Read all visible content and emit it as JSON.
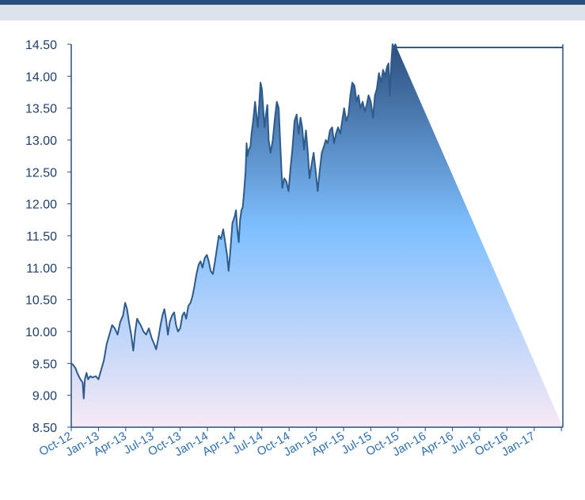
{
  "chart_data": {
    "type": "area",
    "title": "",
    "xlabel": "",
    "ylabel": "",
    "ylim": [
      8.5,
      14.5
    ],
    "y_ticks": [
      "14.50",
      "14.00",
      "13.50",
      "13.00",
      "12.50",
      "12.00",
      "11.50",
      "11.00",
      "10.50",
      "10.00",
      "9.50",
      "9.00",
      "8.50"
    ],
    "x_tick_labels": [
      "Oct-12",
      "Jan-13",
      "Apr-13",
      "Jul-13",
      "Oct-13",
      "Jan-14",
      "Apr-14",
      "Jul-14",
      "Oct-14",
      "Jan-15",
      "Apr-15",
      "Jul-15",
      "Oct-15",
      "Jan-16",
      "Apr-16",
      "Jul-16",
      "Oct-16",
      "Jan-17"
    ],
    "grid": false,
    "colors": {
      "line": "#2e5a8c",
      "fill_top": "#2b4f7e",
      "fill_mid": "#7fbfff",
      "fill_bottom": "#f7e9f5",
      "axis": "#2a4f7d"
    },
    "series": [
      {
        "values": [
          [
            0.0,
            9.5
          ],
          [
            0.08,
            9.47
          ],
          [
            0.15,
            9.43
          ],
          [
            0.22,
            9.35
          ],
          [
            0.3,
            9.28
          ],
          [
            0.37,
            9.23
          ],
          [
            0.42,
            9.2
          ],
          [
            0.46,
            8.95
          ],
          [
            0.5,
            9.25
          ],
          [
            0.56,
            9.35
          ],
          [
            0.62,
            9.25
          ],
          [
            0.7,
            9.3
          ],
          [
            0.78,
            9.28
          ],
          [
            0.9,
            9.3
          ],
          [
            1.0,
            9.25
          ],
          [
            1.1,
            9.4
          ],
          [
            1.2,
            9.55
          ],
          [
            1.3,
            9.8
          ],
          [
            1.4,
            9.95
          ],
          [
            1.5,
            10.1
          ],
          [
            1.6,
            10.05
          ],
          [
            1.7,
            9.95
          ],
          [
            1.8,
            10.15
          ],
          [
            1.9,
            10.25
          ],
          [
            1.98,
            10.45
          ],
          [
            2.05,
            10.35
          ],
          [
            2.12,
            10.15
          ],
          [
            2.2,
            9.95
          ],
          [
            2.28,
            9.7
          ],
          [
            2.35,
            10.0
          ],
          [
            2.42,
            10.2
          ],
          [
            2.48,
            10.15
          ],
          [
            2.55,
            10.1
          ],
          [
            2.65,
            10.0
          ],
          [
            2.75,
            9.95
          ],
          [
            2.85,
            10.05
          ],
          [
            2.95,
            9.9
          ],
          [
            3.05,
            9.8
          ],
          [
            3.12,
            9.72
          ],
          [
            3.2,
            9.9
          ],
          [
            3.28,
            10.1
          ],
          [
            3.35,
            10.25
          ],
          [
            3.42,
            10.35
          ],
          [
            3.48,
            10.2
          ],
          [
            3.55,
            9.95
          ],
          [
            3.62,
            10.15
          ],
          [
            3.7,
            10.25
          ],
          [
            3.78,
            10.3
          ],
          [
            3.85,
            10.1
          ],
          [
            3.92,
            10.0
          ],
          [
            4.0,
            10.05
          ],
          [
            4.08,
            10.25
          ],
          [
            4.15,
            10.3
          ],
          [
            4.22,
            10.2
          ],
          [
            4.3,
            10.4
          ],
          [
            4.38,
            10.45
          ],
          [
            4.45,
            10.55
          ],
          [
            4.52,
            10.7
          ],
          [
            4.6,
            10.9
          ],
          [
            4.68,
            11.05
          ],
          [
            4.75,
            11.1
          ],
          [
            4.82,
            11.0
          ],
          [
            4.9,
            11.15
          ],
          [
            4.98,
            11.2
          ],
          [
            5.05,
            11.1
          ],
          [
            5.12,
            10.95
          ],
          [
            5.2,
            10.9
          ],
          [
            5.28,
            11.1
          ],
          [
            5.35,
            11.3
          ],
          [
            5.42,
            11.5
          ],
          [
            5.5,
            11.45
          ],
          [
            5.58,
            11.6
          ],
          [
            5.65,
            11.4
          ],
          [
            5.72,
            11.2
          ],
          [
            5.78,
            10.95
          ],
          [
            5.85,
            11.3
          ],
          [
            5.92,
            11.7
          ],
          [
            6.0,
            11.8
          ],
          [
            6.05,
            11.9
          ],
          [
            6.1,
            11.6
          ],
          [
            6.15,
            11.4
          ],
          [
            6.2,
            11.75
          ],
          [
            6.25,
            11.9
          ],
          [
            6.3,
            11.95
          ],
          [
            6.35,
            12.2
          ],
          [
            6.4,
            12.5
          ],
          [
            6.44,
            12.95
          ],
          [
            6.47,
            12.75
          ],
          [
            6.52,
            12.85
          ],
          [
            6.58,
            12.9
          ],
          [
            6.62,
            13.1
          ],
          [
            6.68,
            13.3
          ],
          [
            6.75,
            13.6
          ],
          [
            6.8,
            13.4
          ],
          [
            6.85,
            13.2
          ],
          [
            6.9,
            13.55
          ],
          [
            6.95,
            13.9
          ],
          [
            7.0,
            13.8
          ],
          [
            7.05,
            13.5
          ],
          [
            7.1,
            13.2
          ],
          [
            7.15,
            13.4
          ],
          [
            7.2,
            13.55
          ],
          [
            7.25,
            13.0
          ],
          [
            7.32,
            12.8
          ],
          [
            7.4,
            13.0
          ],
          [
            7.48,
            13.35
          ],
          [
            7.55,
            13.6
          ],
          [
            7.62,
            13.5
          ],
          [
            7.68,
            12.9
          ],
          [
            7.75,
            12.25
          ],
          [
            7.82,
            12.4
          ],
          [
            7.9,
            12.35
          ],
          [
            7.98,
            12.2
          ],
          [
            8.05,
            12.55
          ],
          [
            8.12,
            12.85
          ],
          [
            8.2,
            13.3
          ],
          [
            8.28,
            13.4
          ],
          [
            8.35,
            13.1
          ],
          [
            8.42,
            13.35
          ],
          [
            8.48,
            13.2
          ],
          [
            8.55,
            12.85
          ],
          [
            8.62,
            13.15
          ],
          [
            8.68,
            12.85
          ],
          [
            8.75,
            12.4
          ],
          [
            8.82,
            12.6
          ],
          [
            8.9,
            12.8
          ],
          [
            8.98,
            12.5
          ],
          [
            9.05,
            12.2
          ],
          [
            9.12,
            12.5
          ],
          [
            9.2,
            12.8
          ],
          [
            9.28,
            12.9
          ],
          [
            9.35,
            13.0
          ],
          [
            9.42,
            12.95
          ],
          [
            9.5,
            13.15
          ],
          [
            9.58,
            13.2
          ],
          [
            9.65,
            12.95
          ],
          [
            9.72,
            13.1
          ],
          [
            9.8,
            13.2
          ],
          [
            9.88,
            13.1
          ],
          [
            9.95,
            13.3
          ],
          [
            10.02,
            13.5
          ],
          [
            10.1,
            13.3
          ],
          [
            10.18,
            13.4
          ],
          [
            10.25,
            13.7
          ],
          [
            10.32,
            13.9
          ],
          [
            10.4,
            13.85
          ],
          [
            10.48,
            13.6
          ],
          [
            10.55,
            13.7
          ],
          [
            10.62,
            13.5
          ],
          [
            10.7,
            13.6
          ],
          [
            10.78,
            13.45
          ],
          [
            10.85,
            13.55
          ],
          [
            10.92,
            13.7
          ],
          [
            11.0,
            13.6
          ],
          [
            11.08,
            13.35
          ],
          [
            11.15,
            13.7
          ],
          [
            11.22,
            13.8
          ],
          [
            11.3,
            14.05
          ],
          [
            11.38,
            13.9
          ],
          [
            11.45,
            14.1
          ],
          [
            11.52,
            14.0
          ],
          [
            11.6,
            14.15
          ],
          [
            11.65,
            14.2
          ],
          [
            11.7,
            13.7
          ],
          [
            11.75,
            14.2
          ],
          [
            11.8,
            14.5
          ],
          [
            11.85,
            14.45
          ],
          [
            11.9,
            14.5
          ],
          [
            11.95,
            14.45
          ]
        ]
      }
    ]
  }
}
